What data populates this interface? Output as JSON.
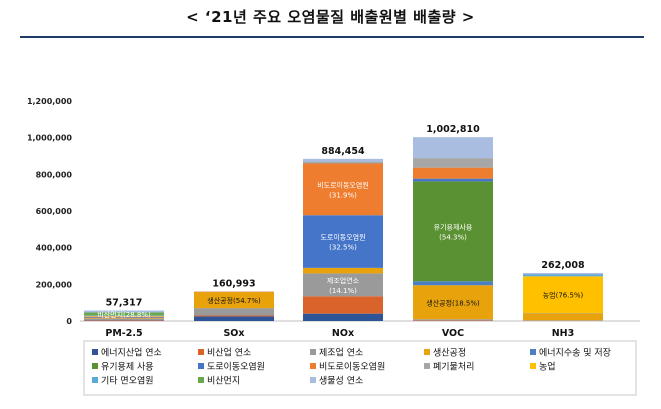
{
  "title": "< ‘21년 주요 오염물질 배출원별 배출량 >",
  "chart_data": {
    "type": "bar",
    "stacked": true,
    "title": "< ‘21년 주요 오염물질 배출원별 배출량 >",
    "categories": [
      "PM-2.5",
      "SOx",
      "NOx",
      "VOC",
      "NH3"
    ],
    "totals": [
      "57,317",
      "160,993",
      "884,454",
      "1,002,810",
      "262,008"
    ],
    "total_values": [
      57317,
      160993,
      884454,
      1002810,
      262008
    ],
    "ylim": [
      0,
      1200000
    ],
    "yticks": [
      0,
      200000,
      400000,
      600000,
      800000,
      1000000,
      1200000
    ],
    "ytick_labels": [
      "0",
      "200,000",
      "400,000",
      "600,000",
      "800,000",
      "1,000,000",
      "1,200,000"
    ],
    "grid": false,
    "legend_position": "bottom",
    "series": [
      {
        "name": "에너지산업 연소",
        "color": "#2e5597",
        "values": [
          2000,
          25000,
          40000,
          1500,
          300
        ]
      },
      {
        "name": "비산업 연소",
        "color": "#d9632b",
        "values": [
          3000,
          5000,
          95000,
          3000,
          300
        ]
      },
      {
        "name": "제조업 연소",
        "color": "#9a9a9a",
        "values": [
          8000,
          40000,
          124700,
          5000,
          3000
        ]
      },
      {
        "name": "생산공정",
        "color": "#e8a20c",
        "values": [
          3000,
          88100,
          30000,
          185500,
          38000
        ]
      },
      {
        "name": "에너지수송 및 저장",
        "color": "#4a7fc1",
        "values": [
          0,
          0,
          0,
          22000,
          0
        ]
      },
      {
        "name": "유기용제 사용",
        "color": "#5a9132",
        "values": [
          0,
          0,
          0,
          544500,
          0
        ]
      },
      {
        "name": "도로이동오염원",
        "color": "#4575c9",
        "values": [
          4000,
          300,
          287300,
          15000,
          1000
        ]
      },
      {
        "name": "비도로이동오염원",
        "color": "#ef7d2f",
        "values": [
          4000,
          2000,
          282100,
          60000,
          200
        ]
      },
      {
        "name": "폐기물처리",
        "color": "#a6a6a6",
        "values": [
          2000,
          500,
          10000,
          52000,
          500
        ]
      },
      {
        "name": "농업",
        "color": "#ffc000",
        "values": [
          2000,
          0,
          0,
          0,
          200400
        ]
      },
      {
        "name": "기타 면오염원",
        "color": "#5aa9d6",
        "values": [
          2000,
          0,
          500,
          0,
          10000
        ]
      },
      {
        "name": "비산먼지",
        "color": "#6aa84f",
        "values": [
          16500,
          0,
          0,
          0,
          0
        ]
      },
      {
        "name": "생물성 연소",
        "color": "#a9bde0",
        "values": [
          10817,
          93,
          14854,
          114310,
          8308
        ]
      }
    ],
    "segment_labels": [
      {
        "category": "PM-2.5",
        "series": "비산먼지",
        "text": "비산먼지(28.8%)"
      },
      {
        "category": "SOx",
        "series": "생산공정",
        "text": "생산공정(54.7%)"
      },
      {
        "category": "NOx",
        "series": "비도로이동오염원",
        "text": "비도로이동오염원",
        "text2": "(31.9%)"
      },
      {
        "category": "NOx",
        "series": "도로이동오염원",
        "text": "도로이동오염원",
        "text2": "(32.5%)"
      },
      {
        "category": "NOx",
        "series": "제조업 연소",
        "text": "제조업연소",
        "text2": "(14.1%)"
      },
      {
        "category": "VOC",
        "series": "유기용제 사용",
        "text": "유기용제사용",
        "text2": "(54.3%)"
      },
      {
        "category": "VOC",
        "series": "생산공정",
        "text": "생산공정(18.5%)"
      },
      {
        "category": "NH3",
        "series": "농업",
        "text": "농업(76.5%)"
      }
    ]
  }
}
